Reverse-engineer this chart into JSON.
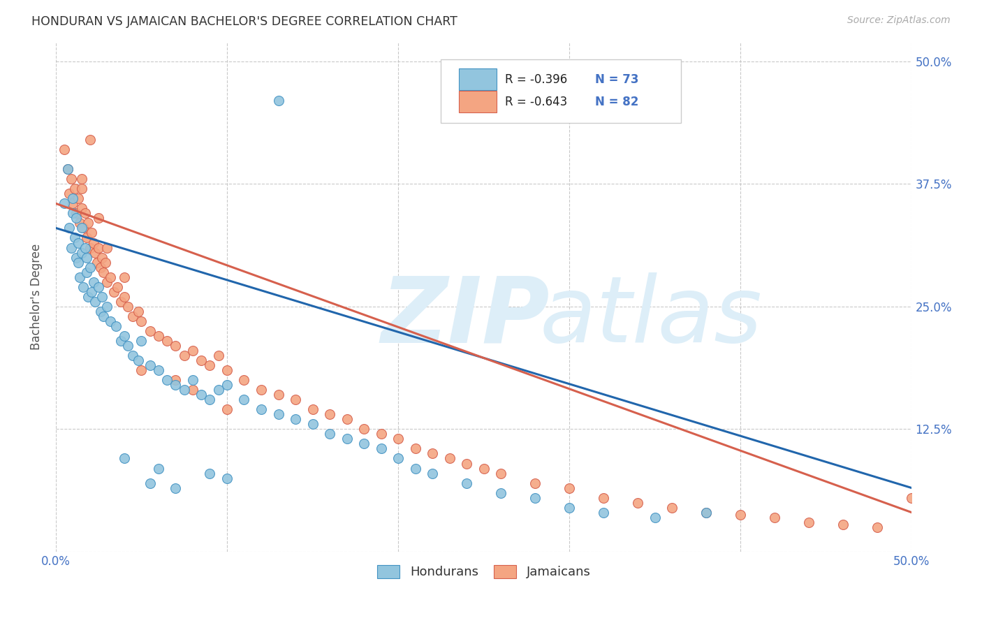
{
  "title": "HONDURAN VS JAMAICAN BACHELOR'S DEGREE CORRELATION CHART",
  "source": "Source: ZipAtlas.com",
  "ylabel": "Bachelor's Degree",
  "blue_color": "#92c5de",
  "pink_color": "#f4a582",
  "blue_edge_color": "#4393c3",
  "pink_edge_color": "#d6604d",
  "blue_line_color": "#2166ac",
  "pink_line_color": "#d6604d",
  "watermark_zip_color": "#ddeef8",
  "watermark_atlas_color": "#ddeef8",
  "background_color": "#ffffff",
  "grid_color": "#bbbbbb",
  "title_color": "#333333",
  "source_color": "#aaaaaa",
  "tick_color": "#4472c4",
  "ylabel_color": "#555555",
  "legend_r_color": "#222222",
  "legend_n_color": "#4472c4",
  "xlim": [
    0.0,
    0.5
  ],
  "ylim": [
    0.0,
    0.52
  ],
  "blue_line_x0": 0.0,
  "blue_line_y0": 0.33,
  "blue_line_x1": 0.5,
  "blue_line_y1": 0.065,
  "pink_line_x0": 0.0,
  "pink_line_y0": 0.355,
  "pink_line_x1": 0.5,
  "pink_line_y1": 0.04,
  "honduran_x": [
    0.005,
    0.007,
    0.008,
    0.009,
    0.01,
    0.01,
    0.011,
    0.012,
    0.012,
    0.013,
    0.013,
    0.014,
    0.015,
    0.015,
    0.016,
    0.017,
    0.018,
    0.018,
    0.019,
    0.02,
    0.021,
    0.022,
    0.023,
    0.025,
    0.026,
    0.027,
    0.028,
    0.03,
    0.032,
    0.035,
    0.038,
    0.04,
    0.042,
    0.045,
    0.048,
    0.05,
    0.055,
    0.06,
    0.065,
    0.07,
    0.075,
    0.08,
    0.085,
    0.09,
    0.095,
    0.1,
    0.11,
    0.12,
    0.13,
    0.14,
    0.15,
    0.16,
    0.17,
    0.18,
    0.19,
    0.2,
    0.21,
    0.22,
    0.24,
    0.26,
    0.28,
    0.3,
    0.32,
    0.35,
    0.38,
    0.1,
    0.06,
    0.04,
    0.055,
    0.07,
    0.09,
    0.13
  ],
  "honduran_y": [
    0.355,
    0.39,
    0.33,
    0.31,
    0.345,
    0.36,
    0.32,
    0.3,
    0.34,
    0.295,
    0.315,
    0.28,
    0.305,
    0.33,
    0.27,
    0.31,
    0.285,
    0.3,
    0.26,
    0.29,
    0.265,
    0.275,
    0.255,
    0.27,
    0.245,
    0.26,
    0.24,
    0.25,
    0.235,
    0.23,
    0.215,
    0.22,
    0.21,
    0.2,
    0.195,
    0.215,
    0.19,
    0.185,
    0.175,
    0.17,
    0.165,
    0.175,
    0.16,
    0.155,
    0.165,
    0.17,
    0.155,
    0.145,
    0.14,
    0.135,
    0.13,
    0.12,
    0.115,
    0.11,
    0.105,
    0.095,
    0.085,
    0.08,
    0.07,
    0.06,
    0.055,
    0.045,
    0.04,
    0.035,
    0.04,
    0.075,
    0.085,
    0.095,
    0.07,
    0.065,
    0.08,
    0.46
  ],
  "jamaican_x": [
    0.005,
    0.007,
    0.008,
    0.009,
    0.01,
    0.011,
    0.012,
    0.013,
    0.014,
    0.015,
    0.015,
    0.016,
    0.017,
    0.018,
    0.019,
    0.02,
    0.021,
    0.022,
    0.023,
    0.024,
    0.025,
    0.026,
    0.027,
    0.028,
    0.029,
    0.03,
    0.032,
    0.034,
    0.036,
    0.038,
    0.04,
    0.042,
    0.045,
    0.048,
    0.05,
    0.055,
    0.06,
    0.065,
    0.07,
    0.075,
    0.08,
    0.085,
    0.09,
    0.095,
    0.1,
    0.11,
    0.12,
    0.13,
    0.14,
    0.15,
    0.16,
    0.17,
    0.18,
    0.19,
    0.2,
    0.21,
    0.22,
    0.23,
    0.24,
    0.25,
    0.26,
    0.28,
    0.3,
    0.32,
    0.34,
    0.36,
    0.38,
    0.4,
    0.42,
    0.44,
    0.46,
    0.48,
    0.5,
    0.015,
    0.02,
    0.025,
    0.03,
    0.05,
    0.07,
    0.08,
    0.1,
    0.04
  ],
  "jamaican_y": [
    0.41,
    0.39,
    0.365,
    0.38,
    0.355,
    0.37,
    0.345,
    0.36,
    0.335,
    0.35,
    0.37,
    0.33,
    0.345,
    0.32,
    0.335,
    0.31,
    0.325,
    0.315,
    0.305,
    0.295,
    0.31,
    0.29,
    0.3,
    0.285,
    0.295,
    0.275,
    0.28,
    0.265,
    0.27,
    0.255,
    0.26,
    0.25,
    0.24,
    0.245,
    0.235,
    0.225,
    0.22,
    0.215,
    0.21,
    0.2,
    0.205,
    0.195,
    0.19,
    0.2,
    0.185,
    0.175,
    0.165,
    0.16,
    0.155,
    0.145,
    0.14,
    0.135,
    0.125,
    0.12,
    0.115,
    0.105,
    0.1,
    0.095,
    0.09,
    0.085,
    0.08,
    0.07,
    0.065,
    0.055,
    0.05,
    0.045,
    0.04,
    0.038,
    0.035,
    0.03,
    0.028,
    0.025,
    0.055,
    0.38,
    0.42,
    0.34,
    0.31,
    0.185,
    0.175,
    0.165,
    0.145,
    0.28
  ]
}
